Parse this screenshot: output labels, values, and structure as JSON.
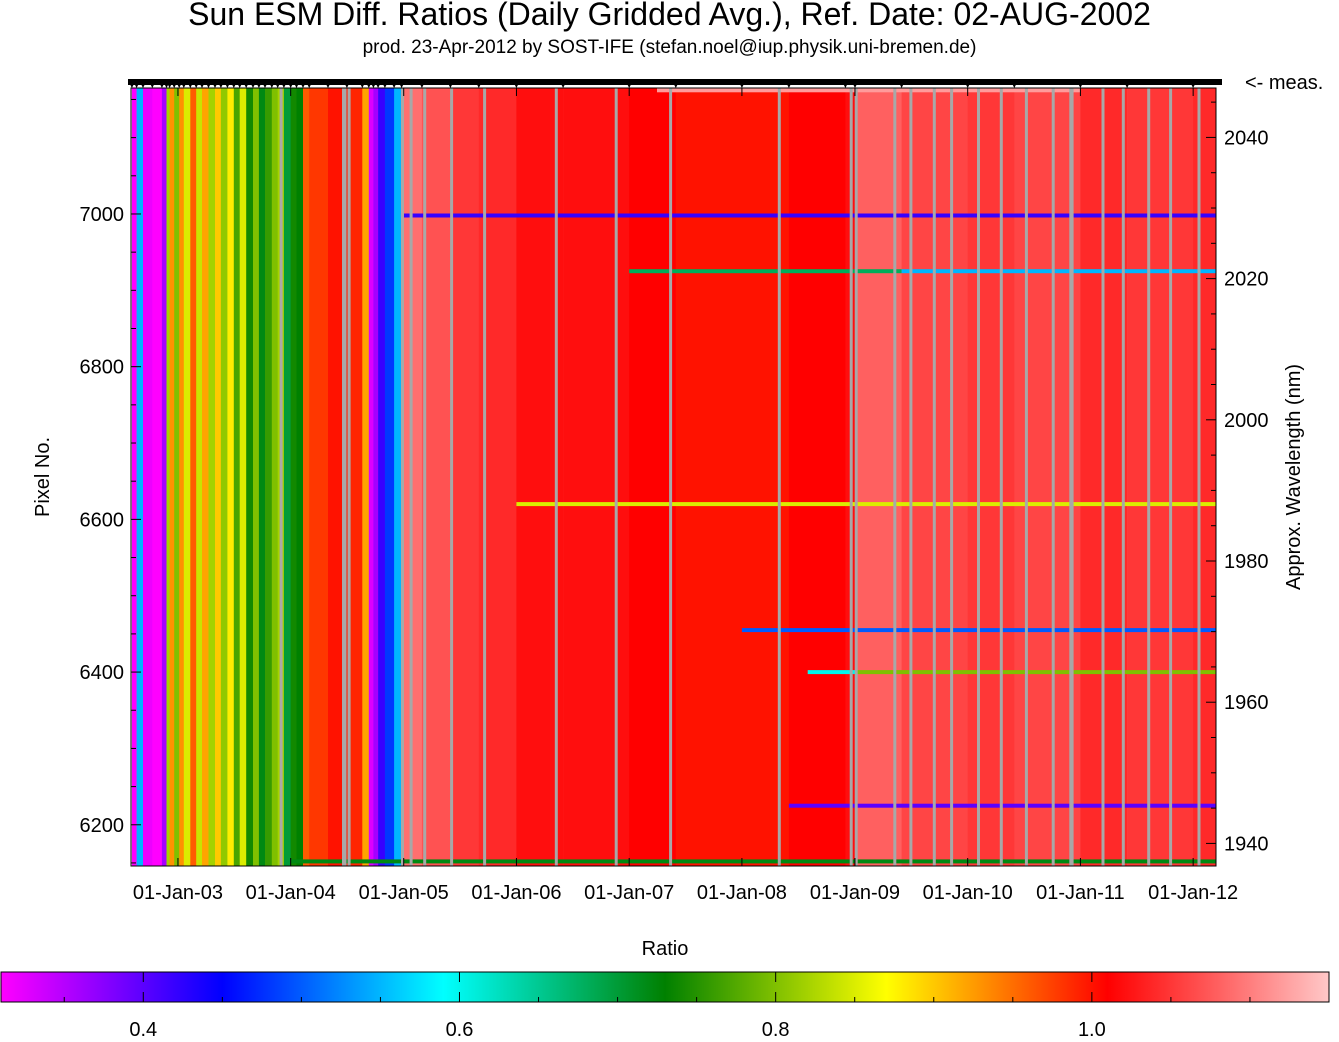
{
  "chart_data": {
    "type": "heatmap",
    "title": "Sun ESM Diff. Ratios (Daily Gridded Avg.), Ref. Date: 02-AUG-2002",
    "subtitle": "prod. 23-Apr-2012 by SOST-IFE (stefan.noel@iup.physik.uni-bremen.de)",
    "ylabel": "Pixel No.",
    "y2label": "Approx. Wavelength (nm)",
    "measurement_marker_label": "<- meas.",
    "colorbar_label": "Ratio",
    "xlim": [
      "2002-08-02",
      "2012-03-15"
    ],
    "ylim": [
      6146,
      7165
    ],
    "y2lim": [
      1936.8,
      2047.0
    ],
    "clim": [
      0.31,
      1.15
    ],
    "x_ticks": [
      "01-Jan-03",
      "01-Jan-04",
      "01-Jan-05",
      "01-Jan-06",
      "01-Jan-07",
      "01-Jan-08",
      "01-Jan-09",
      "01-Jan-10",
      "01-Jan-11",
      "01-Jan-12"
    ],
    "y_ticks": [
      6200,
      6400,
      6600,
      6800,
      7000
    ],
    "y2_ticks": [
      1940,
      1960,
      1980,
      2000,
      2020,
      2040
    ],
    "colorbar_ticks": [
      0.4,
      0.6,
      0.8,
      1.0
    ],
    "colorbar_tick_labels": [
      "0.4",
      "0.6",
      "0.8",
      "1.0"
    ],
    "colormap": [
      "#ff00ff",
      "#8000ff",
      "#0000ff",
      "#0080ff",
      "#00ffff",
      "#00c080",
      "#008000",
      "#80c000",
      "#ffff00",
      "#ff8000",
      "#ff0000",
      "#ff6060",
      "#ffc8c8"
    ],
    "columns": [
      {
        "date": "2002-08-05",
        "ratio": 0.31
      },
      {
        "date": "2002-08-20",
        "ratio": 0.55
      },
      {
        "date": "2002-09-10",
        "ratio": 0.32
      },
      {
        "date": "2002-10-10",
        "ratio": 0.31
      },
      {
        "date": "2002-11-10",
        "ratio": 0.36
      },
      {
        "date": "2002-11-25",
        "ratio": 0.82
      },
      {
        "date": "2002-12-05",
        "ratio": 0.93
      },
      {
        "date": "2002-12-20",
        "ratio": 0.8
      },
      {
        "date": "2003-01-05",
        "ratio": 0.93
      },
      {
        "date": "2003-01-20",
        "ratio": 0.85
      },
      {
        "date": "2003-02-10",
        "ratio": 0.96
      },
      {
        "date": "2003-03-01",
        "ratio": 0.84
      },
      {
        "date": "2003-03-20",
        "ratio": 0.92
      },
      {
        "date": "2003-04-10",
        "ratio": 0.82
      },
      {
        "date": "2003-05-01",
        "ratio": 0.9
      },
      {
        "date": "2003-05-20",
        "ratio": 0.81
      },
      {
        "date": "2003-06-10",
        "ratio": 0.88
      },
      {
        "date": "2003-07-01",
        "ratio": 0.77
      },
      {
        "date": "2003-07-20",
        "ratio": 0.85
      },
      {
        "date": "2003-08-10",
        "ratio": 0.74
      },
      {
        "date": "2003-09-01",
        "ratio": 0.8
      },
      {
        "date": "2003-09-20",
        "ratio": 0.72
      },
      {
        "date": "2003-10-10",
        "ratio": 0.76
      },
      {
        "date": "2003-11-01",
        "ratio": 0.8
      },
      {
        "date": "2003-11-20",
        "ratio": 0.82
      },
      {
        "date": "2003-12-10",
        "ratio": 0.7
      },
      {
        "date": "2004-01-01",
        "ratio": 0.74
      },
      {
        "date": "2004-01-20",
        "ratio": 0.73
      },
      {
        "date": "2004-02-10",
        "ratio": 0.96
      },
      {
        "date": "2004-03-01",
        "ratio": 0.98
      },
      {
        "date": "2004-05-01",
        "ratio": 1.0
      },
      {
        "date": "2004-07-01",
        "ratio": 0.99
      },
      {
        "date": "2004-08-20",
        "ratio": 0.92
      },
      {
        "date": "2004-09-10",
        "ratio": 0.33
      },
      {
        "date": "2004-09-25",
        "ratio": 0.36
      },
      {
        "date": "2004-10-10",
        "ratio": 0.42
      },
      {
        "date": "2004-11-01",
        "ratio": 0.48
      },
      {
        "date": "2004-12-01",
        "ratio": 0.55
      },
      {
        "date": "2004-12-25",
        "ratio": 1.09
      },
      {
        "date": "2005-03-01",
        "ratio": 1.07
      },
      {
        "date": "2005-06-01",
        "ratio": 1.05
      },
      {
        "date": "2005-09-01",
        "ratio": 1.04
      },
      {
        "date": "2006-01-01",
        "ratio": 1.02
      },
      {
        "date": "2006-06-01",
        "ratio": 1.02
      },
      {
        "date": "2007-01-01",
        "ratio": 1.01
      },
      {
        "date": "2007-06-01",
        "ratio": 1.0
      },
      {
        "date": "2008-01-01",
        "ratio": 1.0
      },
      {
        "date": "2008-06-01",
        "ratio": 1.01
      },
      {
        "date": "2008-12-01",
        "ratio": 1.02
      },
      {
        "date": "2009-01-01",
        "ratio": 1.08
      },
      {
        "date": "2009-06-01",
        "ratio": 1.06
      },
      {
        "date": "2010-01-01",
        "ratio": 1.05
      },
      {
        "date": "2010-06-01",
        "ratio": 1.06
      },
      {
        "date": "2011-01-01",
        "ratio": 1.04
      },
      {
        "date": "2011-06-01",
        "ratio": 1.05
      },
      {
        "date": "2012-01-01",
        "ratio": 1.04
      }
    ],
    "row_features": [
      {
        "pixel": 6998,
        "ratio": 0.42,
        "from": "2005-01-01",
        "to": "2012-03-15"
      },
      {
        "pixel": 6925,
        "ratio": 0.68,
        "from": "2007-01-01",
        "to": "2009-06-01"
      },
      {
        "pixel": 6925,
        "ratio": 0.55,
        "from": "2009-06-01",
        "to": "2012-03-15"
      },
      {
        "pixel": 6400,
        "ratio": 0.8,
        "from": "2009-01-01",
        "to": "2012-03-15"
      },
      {
        "pixel": 6400,
        "ratio": 0.6,
        "from": "2008-08-01",
        "to": "2009-01-01"
      },
      {
        "pixel": 7162,
        "ratio": 1.12,
        "from": "2007-04-01",
        "to": "2011-01-01"
      },
      {
        "pixel": 6225,
        "ratio": 0.4,
        "from": "2008-06-01",
        "to": "2012-03-15"
      },
      {
        "pixel": 6152,
        "ratio": 0.72,
        "from": "2004-01-01",
        "to": "2012-03-15"
      },
      {
        "pixel": 6620,
        "ratio": 0.85,
        "from": "2006-01-01",
        "to": "2012-03-15"
      },
      {
        "pixel": 6455,
        "ratio": 0.5,
        "from": "2008-01-01",
        "to": "2012-03-15"
      }
    ],
    "gaps": [
      "2003-12-01",
      "2004-06-20",
      "2004-06-25",
      "2004-07-08",
      "2004-12-28",
      "2005-01-25",
      "2005-03-10",
      "2005-06-05",
      "2005-09-20",
      "2006-05-10",
      "2006-11-20",
      "2007-05-15",
      "2008-05-01",
      "2008-12-20",
      "2009-01-05",
      "2009-05-10",
      "2009-07-01",
      "2009-09-15",
      "2009-11-10",
      "2010-02-05",
      "2010-04-20",
      "2010-07-10",
      "2010-10-05",
      "2010-12-01",
      "2010-12-05",
      "2011-03-15",
      "2011-05-20",
      "2011-08-10",
      "2011-10-20",
      "2012-01-20"
    ]
  }
}
